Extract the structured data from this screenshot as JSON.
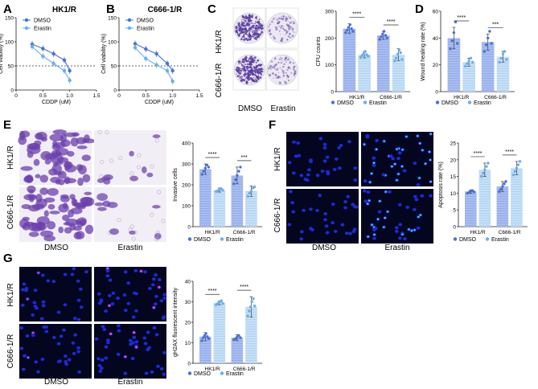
{
  "colors": {
    "dmso": "#4a6fd8",
    "erastin": "#6aaeea",
    "bar_dmso": "#9fb6ec",
    "bar_erastin": "#b9d8f3",
    "axis": "#222222",
    "crystal": "#6b3fae",
    "nuclei": "#1c2ad6",
    "green": "#3fe0c8",
    "pink": "#ff3ad0"
  },
  "panels": {
    "A": {
      "letter": "A",
      "title": "HK1/R"
    },
    "B": {
      "letter": "B",
      "title": "C666-1/R"
    },
    "C": {
      "letter": "C",
      "row_labels": [
        "HK1/R",
        "C666-1/R"
      ],
      "col_labels": [
        "DMSO",
        "Erastin"
      ]
    },
    "D": {
      "letter": "D"
    },
    "E": {
      "letter": "E",
      "row_labels": [
        "HK1/R",
        "C666-1/R"
      ],
      "col_labels": [
        "DMSO",
        "Erastin"
      ]
    },
    "F": {
      "letter": "F",
      "row_labels": [
        "HK1/R",
        "C666-1/R"
      ],
      "col_labels": [
        "DMSO",
        "Erastin"
      ]
    },
    "G": {
      "letter": "G",
      "row_labels": [
        "HK1/R",
        "C666-1/R"
      ],
      "col_labels": [
        "DMSO",
        "Erastin"
      ]
    }
  },
  "chart_data": [
    {
      "id": "A",
      "type": "line",
      "title": "HK1/R",
      "xlabel": "CDDP (uM)",
      "ylabel": "Cell viability (%)",
      "xlim": [
        0,
        1.5
      ],
      "ylim": [
        0,
        150
      ],
      "xticks": [
        "0",
        "0.5",
        "1.0",
        "1.5"
      ],
      "yticks": [
        "0",
        "50",
        "100",
        "150"
      ],
      "reference_line": 50,
      "series": [
        {
          "name": "DMSO",
          "x": [
            0.3,
            0.5,
            0.7,
            0.9,
            1.0
          ],
          "y": [
            95,
            86,
            75,
            62,
            40
          ]
        },
        {
          "name": "Erastin",
          "x": [
            0.3,
            0.5,
            0.7,
            0.9,
            1.0
          ],
          "y": [
            90,
            70,
            55,
            40,
            20
          ]
        }
      ]
    },
    {
      "id": "B",
      "type": "line",
      "title": "C666-1/R",
      "xlabel": "CDDP (uM)",
      "ylabel": "Cell viability (%)",
      "xlim": [
        0,
        1.5
      ],
      "ylim": [
        0,
        150
      ],
      "xticks": [
        "0",
        "0.5",
        "1.0",
        "1.5"
      ],
      "yticks": [
        "0",
        "50",
        "100",
        "150"
      ],
      "reference_line": 50,
      "series": [
        {
          "name": "DMSO",
          "x": [
            0.3,
            0.5,
            0.7,
            0.9,
            1.0
          ],
          "y": [
            96,
            85,
            75,
            55,
            40
          ]
        },
        {
          "name": "Erastin",
          "x": [
            0.3,
            0.5,
            0.7,
            0.9,
            1.0
          ],
          "y": [
            88,
            65,
            52,
            40,
            18
          ]
        }
      ]
    },
    {
      "id": "C",
      "type": "bar",
      "ylabel": "CFU counts",
      "ylim": [
        0,
        300
      ],
      "yticks": [
        "0",
        "100",
        "200",
        "300"
      ],
      "categories": [
        "HK1/R",
        "C666-1/R"
      ],
      "legend": [
        "DMSO",
        "Erastin"
      ],
      "significance": [
        "****",
        "****"
      ],
      "series": [
        {
          "name": "DMSO",
          "values": [
            235,
            210
          ],
          "err": [
            18,
            15
          ],
          "points": [
            [
              220,
              230,
              240,
              250,
              235,
              225
            ],
            [
              195,
              205,
              215,
              225,
              210,
              200
            ]
          ]
        },
        {
          "name": "Erastin",
          "values": [
            138,
            138
          ],
          "err": [
            12,
            22
          ],
          "points": [
            [
              128,
              135,
              142,
              150,
              138,
              132
            ],
            [
              115,
              125,
              140,
              155,
              145,
              120
            ]
          ]
        }
      ]
    },
    {
      "id": "D",
      "type": "bar",
      "ylabel": "Wound healing rate (%)",
      "ylim": [
        0,
        60
      ],
      "yticks": [
        "0",
        "20",
        "40",
        "60"
      ],
      "categories": [
        "HK1/R",
        "C666-1/R"
      ],
      "legend": [
        "DMSO",
        "Erastin"
      ],
      "significance": [
        "****",
        "***"
      ],
      "series": [
        {
          "name": "DMSO",
          "values": [
            40,
            37
          ],
          "err": [
            8,
            6
          ],
          "points": [
            [
              32,
              38,
              44,
              52,
              36
            ],
            [
              30,
              35,
              40,
              45,
              36
            ]
          ]
        },
        {
          "name": "Erastin",
          "values": [
            22,
            26
          ],
          "err": [
            3,
            4
          ],
          "points": [
            [
              19,
              21,
              23,
              25,
              22
            ],
            [
              22,
              25,
              28,
              30,
              24
            ]
          ]
        }
      ]
    },
    {
      "id": "E",
      "type": "bar",
      "ylabel": "Invasive cells",
      "ylim": [
        0,
        400
      ],
      "yticks": [
        "0",
        "100",
        "200",
        "300",
        "400"
      ],
      "categories": [
        "HK1/R",
        "C666-1/R"
      ],
      "legend": [
        "DMSO",
        "Erastin"
      ],
      "significance": [
        "****",
        "***"
      ],
      "series": [
        {
          "name": "DMSO",
          "values": [
            275,
            245
          ],
          "err": [
            25,
            40
          ],
          "points": [
            [
              250,
              265,
              280,
              295,
              285
            ],
            [
              205,
              225,
              245,
              265,
              285
            ]
          ]
        },
        {
          "name": "Erastin",
          "values": [
            175,
            170
          ],
          "err": [
            10,
            25
          ],
          "points": [
            [
              168,
              172,
              178,
              182,
              175
            ],
            [
              145,
              160,
              170,
              185,
              190
            ]
          ]
        }
      ]
    },
    {
      "id": "F",
      "type": "bar",
      "ylabel": "Apoptosis rate (%)",
      "ylim": [
        0,
        25
      ],
      "yticks": [
        "0",
        "5",
        "10",
        "15",
        "20",
        "25"
      ],
      "categories": [
        "HK1/R",
        "C666-1/R"
      ],
      "legend": [
        "DMSO",
        "Erastin"
      ],
      "significance": [
        "****",
        "****"
      ],
      "series": [
        {
          "name": "DMSO",
          "values": [
            10.5,
            12
          ],
          "err": [
            0.5,
            1.5
          ],
          "points": [
            [
              10,
              10.3,
              10.6,
              10.8,
              10.4
            ],
            [
              10.5,
              11.2,
              12,
              12.8,
              13.5
            ]
          ]
        },
        {
          "name": "Erastin",
          "values": [
            17,
            17.5
          ],
          "err": [
            2,
            2
          ],
          "points": [
            [
              15,
              16,
              17,
              18,
              19
            ],
            [
              15.5,
              16.5,
              17.5,
              18.5,
              19.5
            ]
          ]
        }
      ]
    },
    {
      "id": "G",
      "type": "bar",
      "ylabel": "gH2AX fluorescent intensity",
      "ylim": [
        0,
        40
      ],
      "yticks": [
        "0",
        "10",
        "20",
        "30",
        "40"
      ],
      "categories": [
        "HK1/R",
        "C666-1/R"
      ],
      "legend": [
        "DMSO",
        "Erastin"
      ],
      "significance": [
        "****",
        "****"
      ],
      "series": [
        {
          "name": "DMSO",
          "values": [
            13,
            12.5
          ],
          "err": [
            2,
            1.5
          ],
          "points": [
            [
              11,
              12.5,
              13.5,
              14.5,
              13,
              12
            ],
            [
              11.5,
              12,
              12.8,
              13.5,
              12.5
            ]
          ]
        },
        {
          "name": "Erastin",
          "values": [
            29.5,
            27.5
          ],
          "err": [
            1,
            5
          ],
          "points": [
            [
              28.5,
              29,
              29.5,
              30,
              30.5,
              29.2
            ],
            [
              23,
              25.5,
              27.5,
              30,
              31.5,
              28
            ]
          ]
        }
      ]
    }
  ]
}
